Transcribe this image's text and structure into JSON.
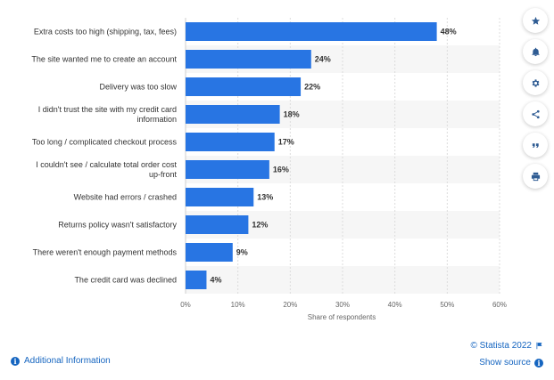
{
  "chart_data": {
    "type": "bar",
    "orientation": "horizontal",
    "categories": [
      [
        "Extra costs too high (shipping, tax, fees)"
      ],
      [
        "The site wanted me to create an account"
      ],
      [
        "Delivery was too slow"
      ],
      [
        "I didn't trust the site with my credit card",
        "information"
      ],
      [
        "Too long / complicated checkout process"
      ],
      [
        "I couldn't see / calculate total order cost",
        "up-front"
      ],
      [
        "Website had errors / crashed"
      ],
      [
        "Returns policy wasn't satisfactory"
      ],
      [
        "There weren't enough payment methods"
      ],
      [
        "The credit card was declined"
      ]
    ],
    "values": [
      48,
      24,
      22,
      18,
      17,
      16,
      13,
      12,
      9,
      4
    ],
    "value_suffix": "%",
    "xlim": [
      0,
      60
    ],
    "xticks": [
      0,
      10,
      20,
      30,
      40,
      50,
      60
    ],
    "xtick_labels": [
      "0%",
      "10%",
      "20%",
      "30%",
      "40%",
      "50%",
      "60%"
    ],
    "xlabel": "Share of respondents",
    "bar_color": "#2875e3",
    "grid": true
  },
  "toolbar": {
    "items": [
      {
        "name": "star-icon"
      },
      {
        "name": "bell-icon"
      },
      {
        "name": "gear-icon"
      },
      {
        "name": "share-icon"
      },
      {
        "name": "quote-icon"
      },
      {
        "name": "print-icon"
      }
    ]
  },
  "footer": {
    "copyright": "© Statista 2022",
    "additional_info": "Additional Information",
    "show_source": "Show source"
  },
  "colors": {
    "accent": "#1565c0",
    "bar": "#2875e3",
    "stripe": "#f6f6f6"
  }
}
